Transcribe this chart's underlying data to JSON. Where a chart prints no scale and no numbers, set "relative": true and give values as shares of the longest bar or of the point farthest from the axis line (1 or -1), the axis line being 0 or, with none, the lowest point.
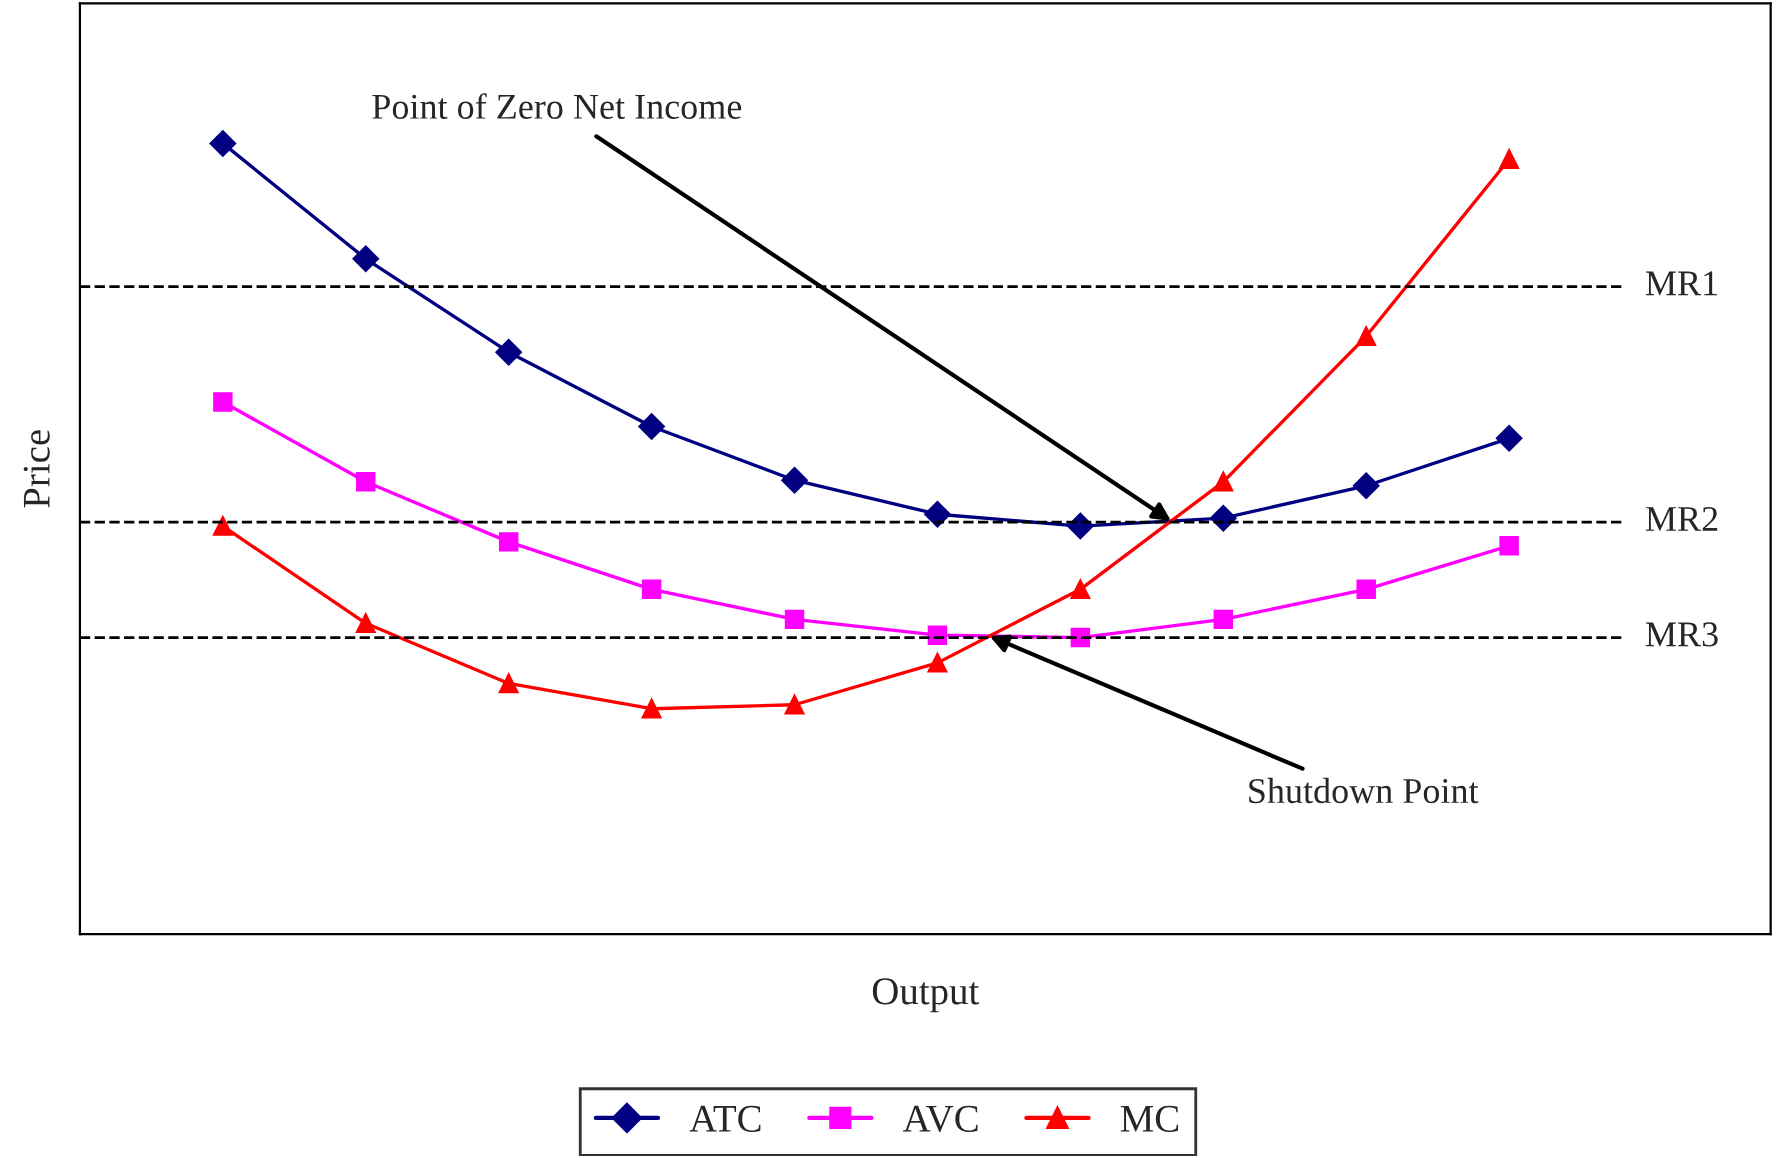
{
  "chart_data": {
    "type": "line",
    "relative": true,
    "xlabel": "Output",
    "ylabel": "Price",
    "categories": [
      null,
      null,
      null,
      null,
      null,
      null,
      null,
      null,
      null,
      null
    ],
    "series": [
      {
        "name": "ATC",
        "color": "#000080",
        "marker": "diamond",
        "values": [
          1,
          0.854,
          0.736,
          0.642,
          0.574,
          0.531,
          0.516,
          0.526,
          0.567,
          0.627
        ]
      },
      {
        "name": "AVC",
        "color": "#ff00ff",
        "marker": "square",
        "values": [
          0.673,
          0.572,
          0.496,
          0.436,
          0.398,
          0.378,
          0.375,
          0.398,
          0.436,
          0.491
        ]
      },
      {
        "name": "MC",
        "color": "#ff0000",
        "marker": "triangle",
        "values": [
          0.516,
          0.393,
          0.317,
          0.285,
          0.29,
          0.343,
          0.436,
          0.572,
          0.756,
          0.98
        ]
      }
    ],
    "ref_lines": [
      {
        "axis": "y",
        "value": 0.819,
        "label": "MR1",
        "color": "#000000",
        "line_style": "dashed"
      },
      {
        "axis": "y",
        "value": 0.521,
        "label": "MR2",
        "color": "#000000",
        "line_style": "dashed"
      },
      {
        "axis": "y",
        "value": 0.375,
        "label": "MR3",
        "color": "#000000",
        "line_style": "dashed"
      }
    ],
    "annotations": [
      "Point of Zero Net Income",
      "Shutdown Point"
    ],
    "grid": false,
    "legend": "bottom"
  }
}
